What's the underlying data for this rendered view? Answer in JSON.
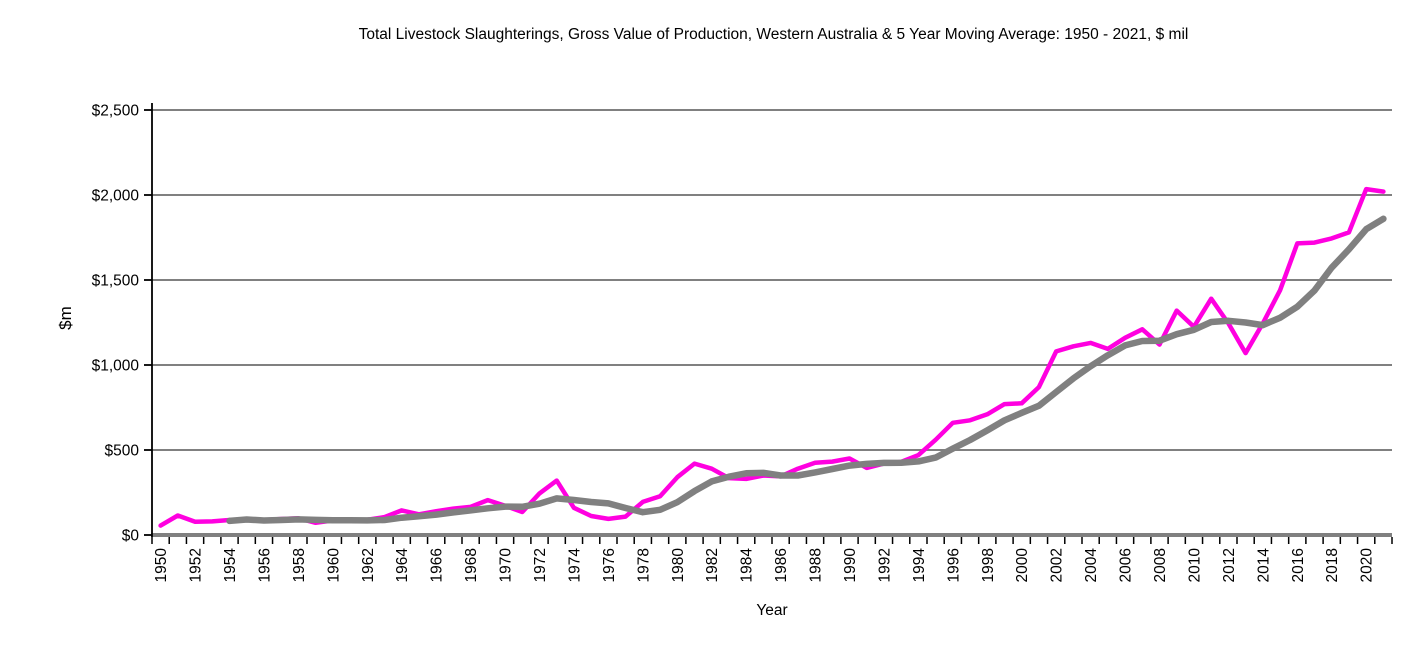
{
  "chart_data": {
    "type": "line",
    "title": "Total Livestock Slaughterings, Gross Value of Production, Western Australia & 5 Year Moving Average: 1950 - 2021, $ mil",
    "xlabel": "Year",
    "ylabel": "$m",
    "x_range": [
      1950,
      2021
    ],
    "ylim": [
      0,
      2500
    ],
    "grid": true,
    "legend_position": "none",
    "axis_color": "#000000",
    "gridline_color": "#808080",
    "x_axis_line_color": "#808080",
    "y_ticks": [
      {
        "value": 0,
        "label": "$0"
      },
      {
        "value": 500,
        "label": "$500"
      },
      {
        "value": 1000,
        "label": "$1,000"
      },
      {
        "value": 1500,
        "label": "$1,500"
      },
      {
        "value": 2000,
        "label": "$2,000"
      },
      {
        "value": 2500,
        "label": "$2,500"
      }
    ],
    "x_tick_labels": [
      "1950",
      "1952",
      "1954",
      "1956",
      "1958",
      "1960",
      "1962",
      "1964",
      "1966",
      "1968",
      "1970",
      "1972",
      "1974",
      "1976",
      "1978",
      "1980",
      "1982",
      "1984",
      "1986",
      "1988",
      "1990",
      "1992",
      "1994",
      "1996",
      "1998",
      "2000",
      "2002",
      "2004",
      "2006",
      "2008",
      "2010",
      "2012",
      "2014",
      "2016",
      "2018",
      "2020"
    ],
    "series": [
      {
        "name": "Gross Value of Production",
        "color": "#FF00E0",
        "stroke_width": 4.5,
        "start_year": 1950,
        "values": [
          55,
          115,
          78,
          80,
          88,
          92,
          88,
          94,
          98,
          72,
          85,
          86,
          90,
          105,
          145,
          122,
          140,
          155,
          165,
          205,
          172,
          135,
          245,
          320,
          160,
          112,
          95,
          108,
          195,
          228,
          340,
          420,
          390,
          335,
          330,
          350,
          345,
          390,
          425,
          432,
          450,
          395,
          420,
          430,
          470,
          560,
          660,
          675,
          710,
          770,
          775,
          870,
          1080,
          1110,
          1130,
          1095,
          1160,
          1210,
          1120,
          1320,
          1225,
          1390,
          1245,
          1070,
          1245,
          1440,
          1715,
          1720,
          1745,
          1780,
          2035,
          2020
        ]
      },
      {
        "name": "5 Year Moving Average",
        "color": "#808080",
        "stroke_width": 6.5,
        "start_year": 1954,
        "values": [
          83,
          91,
          85,
          88,
          92,
          89,
          87,
          87,
          86,
          88,
          102,
          110,
          120,
          133,
          145,
          157,
          167,
          166,
          184,
          215,
          206,
          194,
          186,
          159,
          134,
          148,
          193,
          258,
          315,
          343,
          363,
          365,
          350,
          350,
          368,
          388,
          408,
          418,
          424,
          425,
          433,
          455,
          508,
          559,
          615,
          675,
          718,
          760,
          841,
          921,
          993,
          1057,
          1115,
          1141,
          1143,
          1181,
          1207,
          1253,
          1260,
          1250,
          1235,
          1278,
          1343,
          1438,
          1573,
          1680,
          1799,
          1860
        ]
      }
    ]
  }
}
